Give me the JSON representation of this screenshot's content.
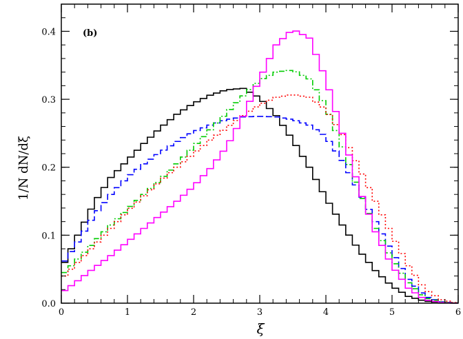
{
  "chart_data": {
    "type": "line",
    "style": "step-histogram",
    "annotation": "(b)",
    "xlabel": "ξ",
    "ylabel": "1/N dN/dξ",
    "xlim": [
      0,
      6
    ],
    "ylim": [
      0,
      0.44
    ],
    "x_ticks": [
      0,
      1,
      2,
      3,
      4,
      5,
      6
    ],
    "y_ticks": [
      0.0,
      0.1,
      0.2,
      0.3,
      0.4
    ],
    "x_tick_labels": [
      "0",
      "1",
      "2",
      "3",
      "4",
      "5",
      "6"
    ],
    "y_tick_labels": [
      "0.0",
      "0.1",
      "0.2",
      "0.3",
      "0.4"
    ],
    "grid": false,
    "legend": "none",
    "series": [
      {
        "color": "#000000",
        "line_style": "solid",
        "x": [
          0.0,
          0.25,
          0.5,
          0.75,
          1.0,
          1.25,
          1.5,
          1.75,
          2.0,
          2.25,
          2.5,
          2.75,
          3.0,
          3.25,
          3.5,
          3.75,
          4.0,
          4.25,
          4.5,
          4.75,
          5.0,
          5.25,
          5.5,
          5.75,
          6.0
        ],
        "values": [
          0.05,
          0.1,
          0.148,
          0.185,
          0.21,
          0.235,
          0.258,
          0.278,
          0.294,
          0.306,
          0.314,
          0.316,
          0.302,
          0.276,
          0.24,
          0.2,
          0.155,
          0.115,
          0.078,
          0.048,
          0.025,
          0.01,
          0.003,
          0.001,
          0.0
        ]
      },
      {
        "color": "#0000ff",
        "line_style": "dashed",
        "x": [
          0.0,
          0.25,
          0.5,
          0.75,
          1.0,
          1.25,
          1.5,
          1.75,
          2.0,
          2.25,
          2.5,
          2.75,
          3.0,
          3.25,
          3.5,
          3.75,
          4.0,
          4.25,
          4.5,
          4.75,
          5.0,
          5.25,
          5.5,
          5.75,
          6.0
        ],
        "values": [
          0.055,
          0.09,
          0.13,
          0.16,
          0.185,
          0.205,
          0.222,
          0.238,
          0.252,
          0.262,
          0.27,
          0.274,
          0.275,
          0.274,
          0.27,
          0.262,
          0.245,
          0.21,
          0.165,
          0.12,
          0.075,
          0.035,
          0.01,
          0.002,
          0.0
        ]
      },
      {
        "color": "#00cc00",
        "line_style": "dash-dot",
        "x": [
          0.0,
          0.25,
          0.5,
          0.75,
          1.0,
          1.25,
          1.5,
          1.75,
          2.0,
          2.25,
          2.5,
          2.75,
          3.0,
          3.25,
          3.5,
          3.75,
          4.0,
          4.25,
          4.5,
          4.75,
          5.0,
          5.25,
          5.5,
          5.75,
          6.0
        ],
        "values": [
          0.04,
          0.065,
          0.09,
          0.115,
          0.138,
          0.16,
          0.182,
          0.205,
          0.23,
          0.255,
          0.28,
          0.305,
          0.328,
          0.34,
          0.343,
          0.33,
          0.29,
          0.23,
          0.165,
          0.11,
          0.065,
          0.03,
          0.008,
          0.002,
          0.0
        ]
      },
      {
        "color": "#ff0000",
        "line_style": "dotted",
        "x": [
          0.0,
          0.25,
          0.5,
          0.75,
          1.0,
          1.25,
          1.5,
          1.75,
          2.0,
          2.25,
          2.5,
          2.75,
          3.0,
          3.25,
          3.5,
          3.75,
          4.0,
          4.25,
          4.5,
          4.75,
          5.0,
          5.25,
          5.5,
          5.75,
          6.0
        ],
        "values": [
          0.035,
          0.06,
          0.085,
          0.11,
          0.135,
          0.158,
          0.18,
          0.2,
          0.22,
          0.24,
          0.258,
          0.276,
          0.292,
          0.303,
          0.307,
          0.303,
          0.285,
          0.248,
          0.2,
          0.15,
          0.1,
          0.055,
          0.02,
          0.005,
          0.0
        ]
      },
      {
        "color": "#ff00ff",
        "line_style": "solid",
        "x": [
          0.0,
          0.25,
          0.5,
          0.75,
          1.0,
          1.25,
          1.5,
          1.75,
          2.0,
          2.25,
          2.5,
          2.75,
          3.0,
          3.25,
          3.5,
          3.75,
          4.0,
          4.25,
          4.5,
          4.75,
          5.0,
          5.25,
          5.5,
          5.75,
          6.0
        ],
        "values": [
          0.015,
          0.033,
          0.052,
          0.07,
          0.09,
          0.11,
          0.13,
          0.15,
          0.172,
          0.198,
          0.23,
          0.275,
          0.33,
          0.38,
          0.403,
          0.39,
          0.33,
          0.25,
          0.17,
          0.105,
          0.055,
          0.022,
          0.005,
          0.001,
          0.0
        ]
      }
    ]
  }
}
